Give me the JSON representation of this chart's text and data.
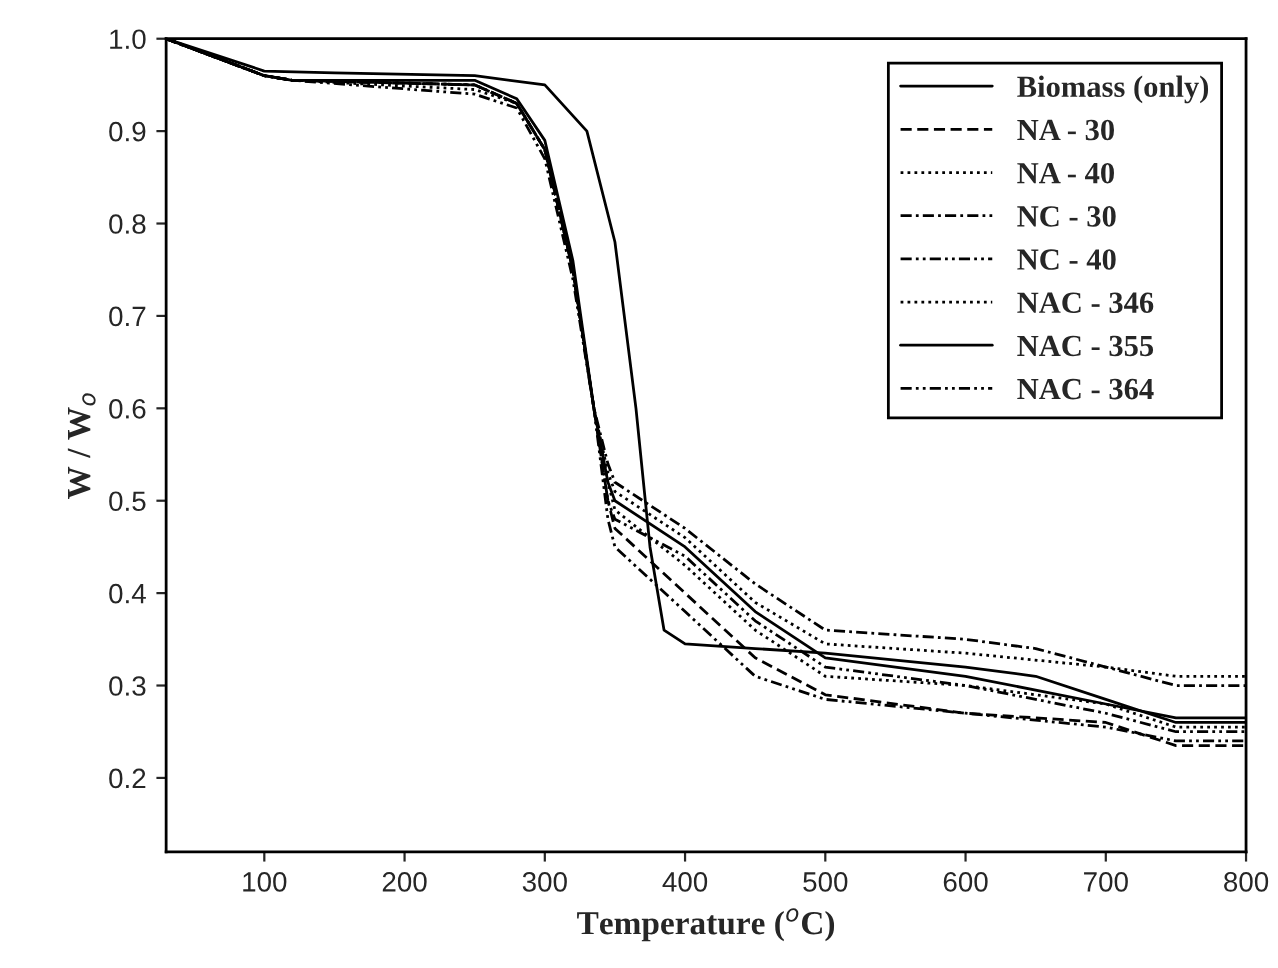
{
  "chart_data": {
    "type": "line",
    "xlabel": "Temperature ($^{o}$C)",
    "ylabel": "W / W$_{o}$",
    "xlim": [
      30,
      800
    ],
    "ylim": [
      0.12,
      1.0
    ],
    "xticks": [
      100,
      200,
      300,
      400,
      500,
      600,
      700,
      800
    ],
    "yticks": [
      0.2,
      0.3,
      0.4,
      0.5,
      0.6,
      0.7,
      0.8,
      0.9,
      {
        "value": 1.0,
        "label": "1.0"
      }
    ],
    "legend": "top right",
    "grid": false,
    "marker": "none",
    "series": [
      {
        "name": "Biomass (only)",
        "color": "#000000",
        "line_style": "solid",
        "x": [
          30,
          100,
          150,
          250,
          300,
          330,
          350,
          365,
          375,
          385,
          400,
          450,
          500,
          600,
          650,
          700,
          750,
          800
        ],
        "values": [
          1.0,
          0.965,
          0.963,
          0.96,
          0.95,
          0.9,
          0.78,
          0.6,
          0.45,
          0.36,
          0.345,
          0.34,
          0.335,
          0.32,
          0.31,
          0.285,
          0.26,
          0.26
        ]
      },
      {
        "name": "NA - 30",
        "color": "#000000",
        "line_style": "dashed",
        "x": [
          30,
          100,
          120,
          250,
          280,
          300,
          320,
          335,
          345,
          350,
          400,
          450,
          500,
          600,
          700,
          750,
          800
        ],
        "values": [
          1.0,
          0.96,
          0.955,
          0.95,
          0.93,
          0.88,
          0.75,
          0.6,
          0.5,
          0.47,
          0.4,
          0.33,
          0.29,
          0.27,
          0.26,
          0.235,
          0.235
        ]
      },
      {
        "name": "NA - 40",
        "color": "#000000",
        "line_style": "dotted",
        "x": [
          30,
          100,
          120,
          250,
          280,
          300,
          320,
          335,
          345,
          350,
          400,
          450,
          500,
          600,
          700,
          750,
          800
        ],
        "values": [
          1.0,
          0.96,
          0.955,
          0.945,
          0.93,
          0.88,
          0.75,
          0.6,
          0.52,
          0.49,
          0.43,
          0.36,
          0.31,
          0.3,
          0.28,
          0.255,
          0.255
        ]
      },
      {
        "name": "NC - 30",
        "color": "#000000",
        "line_style": "dashdot",
        "x": [
          30,
          100,
          120,
          250,
          280,
          300,
          320,
          335,
          345,
          350,
          400,
          450,
          500,
          600,
          650,
          700,
          750,
          800
        ],
        "values": [
          1.0,
          0.96,
          0.955,
          0.95,
          0.93,
          0.88,
          0.75,
          0.6,
          0.54,
          0.52,
          0.47,
          0.41,
          0.36,
          0.35,
          0.34,
          0.32,
          0.3,
          0.3
        ]
      },
      {
        "name": "NC - 40",
        "color": "#000000",
        "line_style": "dashdotdot",
        "x": [
          30,
          100,
          120,
          250,
          280,
          300,
          320,
          335,
          345,
          350,
          400,
          450,
          500,
          600,
          700,
          750,
          800
        ],
        "values": [
          1.0,
          0.96,
          0.955,
          0.94,
          0.925,
          0.87,
          0.74,
          0.6,
          0.48,
          0.45,
          0.38,
          0.31,
          0.285,
          0.27,
          0.255,
          0.24,
          0.24
        ]
      },
      {
        "name": "NAC - 346",
        "color": "#000000",
        "line_style": "dotted",
        "x": [
          30,
          100,
          120,
          250,
          280,
          300,
          320,
          335,
          345,
          350,
          400,
          450,
          500,
          600,
          700,
          750,
          800
        ],
        "values": [
          1.0,
          0.96,
          0.955,
          0.95,
          0.93,
          0.88,
          0.75,
          0.6,
          0.53,
          0.51,
          0.46,
          0.39,
          0.345,
          0.335,
          0.32,
          0.31,
          0.31
        ]
      },
      {
        "name": "NAC - 355",
        "color": "#000000",
        "line_style": "solid",
        "x": [
          30,
          100,
          120,
          250,
          280,
          300,
          320,
          335,
          345,
          350,
          400,
          450,
          500,
          600,
          700,
          750,
          800
        ],
        "values": [
          1.0,
          0.96,
          0.955,
          0.955,
          0.935,
          0.89,
          0.76,
          0.6,
          0.52,
          0.5,
          0.45,
          0.38,
          0.33,
          0.31,
          0.28,
          0.265,
          0.265
        ]
      },
      {
        "name": "NAC - 364",
        "color": "#000000",
        "line_style": "dashdotdot",
        "x": [
          30,
          100,
          120,
          250,
          280,
          300,
          320,
          335,
          345,
          350,
          400,
          450,
          500,
          600,
          700,
          750,
          800
        ],
        "values": [
          1.0,
          0.96,
          0.955,
          0.95,
          0.93,
          0.88,
          0.75,
          0.6,
          0.5,
          0.48,
          0.44,
          0.37,
          0.32,
          0.3,
          0.27,
          0.25,
          0.25
        ]
      }
    ]
  }
}
